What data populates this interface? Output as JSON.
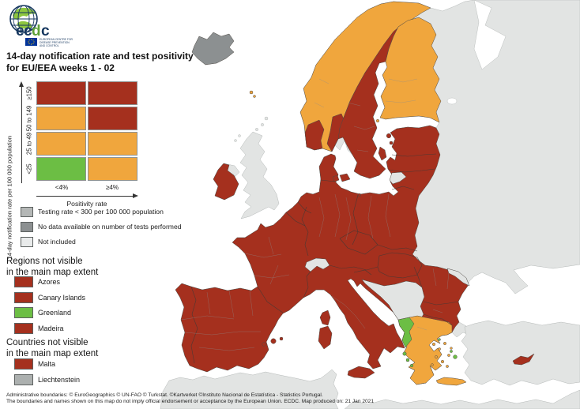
{
  "logo": {
    "letters": [
      "e",
      "c",
      "d",
      "c"
    ],
    "subtitle_lines": [
      "EUROPEAN CENTRE FOR",
      "DISEASE PREVENTION",
      "AND CONTROL"
    ]
  },
  "title": {
    "line1": "14-day notification rate and test positivity",
    "line2": "for EU/EEA weeks 1 - 02"
  },
  "matrix_legend": {
    "y_axis_label": "14-day notification rate per 100 000 population",
    "x_axis_label": "Positivity rate",
    "row_labels": [
      "≥150",
      "50 to 149",
      "25 to 49",
      "<25"
    ],
    "col_labels": [
      "<4%",
      "≥4%"
    ],
    "cells": [
      [
        "dark_red",
        "dark_red"
      ],
      [
        "orange",
        "dark_red"
      ],
      [
        "orange",
        "orange"
      ],
      [
        "green",
        "orange"
      ]
    ]
  },
  "colors": {
    "dark_red": "#A5301E",
    "orange": "#F0A63D",
    "green": "#6CBE44",
    "testing_gray": "#B4B7B6",
    "no_data_gray": "#8C9091",
    "not_included_gray": "#E9EBEB",
    "land_gray": "#E2E4E3",
    "liechtenstein_gray": "#ACB0AF"
  },
  "legend_items": [
    {
      "label": "Testing rate < 300 per 100 000 population",
      "color_key": "testing_gray"
    },
    {
      "label": "No data available on number of tests performed",
      "color_key": "no_data_gray"
    },
    {
      "label": "Not included",
      "color_key": "not_included_gray"
    }
  ],
  "regions_heading": [
    "Regions not visible",
    "in the main map extent"
  ],
  "regions": [
    {
      "label": "Azores",
      "color_key": "dark_red"
    },
    {
      "label": "Canary Islands",
      "color_key": "dark_red"
    },
    {
      "label": "Greenland",
      "color_key": "green"
    },
    {
      "label": "Madeira",
      "color_key": "dark_red"
    }
  ],
  "countries_heading": [
    "Countries not visible",
    "in the main map extent"
  ],
  "countries": [
    {
      "label": "Malta",
      "color_key": "dark_red"
    },
    {
      "label": "Liechtenstein",
      "color_key": "liechtenstein_gray"
    }
  ],
  "map_categories": {
    "non_eu_land": "land_gray",
    "iceland": "no_data_gray",
    "united_kingdom": "land_gray",
    "ireland": "dark_red",
    "norway": "orange",
    "norway_south": "dark_red",
    "sweden": "dark_red",
    "finland": "orange",
    "eu_mainland": "dark_red",
    "denmark_islands": "dark_red",
    "baltic_islands": "dark_red",
    "western_balkans": "land_gray",
    "switzerland": "land_gray",
    "kaliningrad": "land_gray",
    "moldova": "land_gray",
    "turkey": "land_gray",
    "north_africa": "land_gray",
    "greece": "orange",
    "greece_west": "green",
    "greek_islands_green": "green",
    "aegean_islands": "orange",
    "crete": "orange",
    "cyprus": "dark_red",
    "mediterranean_islands": "dark_red",
    "faroe_islands": "orange",
    "aland_islands": "orange",
    "scottish_islands": "land_gray"
  },
  "footer": {
    "line1": "Administrative boundaries: © EuroGeographics © UN-FAO © Turkstat. ©Kartverket ©Instituto Nacional de Estatística - Statistics Portugal.",
    "line2": "The boundaries and names shown on this map do not imply official endorsement or acceptance by the European Union. ECDC. Map produced on: 21 Jan 2021"
  }
}
